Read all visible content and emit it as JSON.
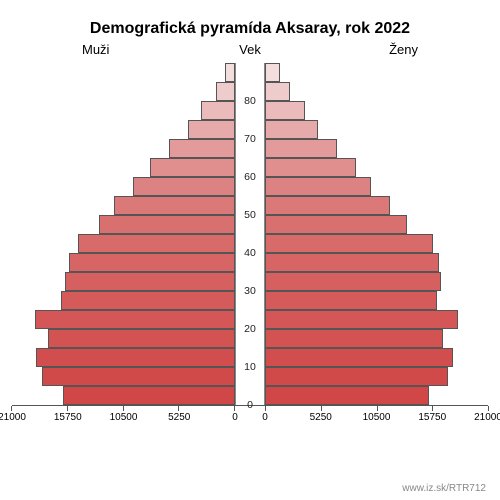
{
  "chart": {
    "type": "population-pyramid",
    "title": "Demografická pyramída Aksaray, rok 2022",
    "title_fontsize": 16,
    "label_fontsize": 13,
    "axis_fontsize": 10,
    "background_color": "#ffffff",
    "bar_border_color": "#555555",
    "left_label": "Muži",
    "center_label": "Vek",
    "right_label": "Ženy",
    "x_max": 21000,
    "x_ticks": [
      0,
      5250,
      10500,
      15750,
      21000
    ],
    "y_ticks": [
      0,
      10,
      20,
      30,
      40,
      50,
      60,
      70,
      80
    ],
    "y_max_age": 90,
    "age_step": 5,
    "age_groups": [
      {
        "age_low": 0,
        "male": 16200,
        "female": 15400,
        "color": "#d14646"
      },
      {
        "age_low": 5,
        "male": 18200,
        "female": 17200,
        "color": "#d14a4a"
      },
      {
        "age_low": 10,
        "male": 18700,
        "female": 17700,
        "color": "#d24e4e"
      },
      {
        "age_low": 15,
        "male": 17600,
        "female": 16800,
        "color": "#d35252"
      },
      {
        "age_low": 20,
        "male": 18800,
        "female": 18200,
        "color": "#d45656"
      },
      {
        "age_low": 25,
        "male": 16400,
        "female": 16200,
        "color": "#d55b5b"
      },
      {
        "age_low": 30,
        "male": 16000,
        "female": 16600,
        "color": "#d66060"
      },
      {
        "age_low": 35,
        "male": 15600,
        "female": 16400,
        "color": "#d76565"
      },
      {
        "age_low": 40,
        "male": 14800,
        "female": 15800,
        "color": "#d86a6a"
      },
      {
        "age_low": 45,
        "male": 12800,
        "female": 13400,
        "color": "#d97070"
      },
      {
        "age_low": 50,
        "male": 11400,
        "female": 11800,
        "color": "#db7878"
      },
      {
        "age_low": 55,
        "male": 9600,
        "female": 10000,
        "color": "#dd8282"
      },
      {
        "age_low": 60,
        "male": 8000,
        "female": 8600,
        "color": "#e08e8e"
      },
      {
        "age_low": 65,
        "male": 6200,
        "female": 6800,
        "color": "#e39a9a"
      },
      {
        "age_low": 70,
        "male": 4400,
        "female": 5000,
        "color": "#e7aaaa"
      },
      {
        "age_low": 75,
        "male": 3200,
        "female": 3800,
        "color": "#ebbbbb"
      },
      {
        "age_low": 80,
        "male": 1800,
        "female": 2400,
        "color": "#efcccc"
      },
      {
        "age_low": 85,
        "male": 900,
        "female": 1400,
        "color": "#f3dddd"
      }
    ]
  },
  "footer_url": "www.iz.sk/RTR712"
}
